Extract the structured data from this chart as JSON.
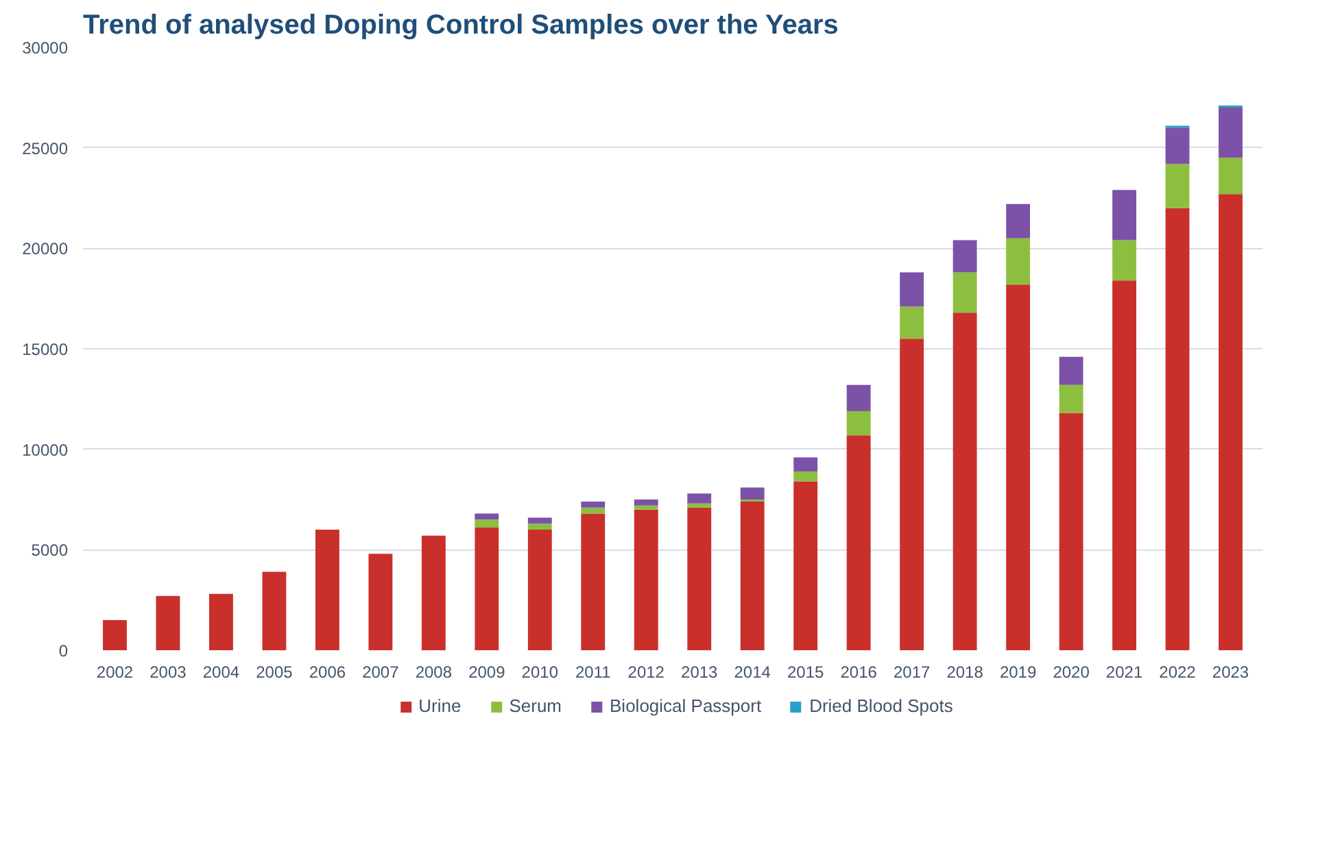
{
  "chart_data": {
    "type": "bar",
    "title": "Trend of analysed Doping Control Samples over the Years",
    "categories": [
      "2002",
      "2003",
      "2004",
      "2005",
      "2006",
      "2007",
      "2008",
      "2009",
      "2010",
      "2011",
      "2012",
      "2013",
      "2014",
      "2015",
      "2016",
      "2017",
      "2018",
      "2019",
      "2020",
      "2021",
      "2022",
      "2023"
    ],
    "stacked": true,
    "series": [
      {
        "name": "Urine",
        "color": "#c9302c",
        "values": [
          1500,
          2700,
          2800,
          3900,
          6000,
          4800,
          5700,
          6100,
          6000,
          6800,
          7000,
          7100,
          7400,
          8400,
          10700,
          15500,
          16800,
          18200,
          11800,
          18400,
          22000,
          22700
        ]
      },
      {
        "name": "Serum",
        "color": "#8cbf3f",
        "values": [
          0,
          0,
          0,
          0,
          0,
          0,
          0,
          400,
          300,
          300,
          200,
          200,
          100,
          500,
          1200,
          1600,
          2000,
          2300,
          1400,
          2000,
          2200,
          1800
        ]
      },
      {
        "name": "Biological Passport",
        "color": "#7b52a8",
        "values": [
          0,
          0,
          0,
          0,
          0,
          0,
          0,
          300,
          300,
          300,
          300,
          500,
          600,
          700,
          1300,
          1700,
          1600,
          1700,
          1400,
          2500,
          1800,
          2500
        ]
      },
      {
        "name": "Dried Blood Spots",
        "color": "#2aa0c8",
        "values": [
          0,
          0,
          0,
          0,
          0,
          0,
          0,
          0,
          0,
          0,
          0,
          0,
          0,
          0,
          0,
          0,
          0,
          0,
          0,
          0,
          100,
          100
        ]
      }
    ],
    "ylim": [
      0,
      30000
    ],
    "yticks": [
      0,
      5000,
      10000,
      15000,
      20000,
      25000,
      30000
    ],
    "grid": "y",
    "legend": "bottom"
  }
}
